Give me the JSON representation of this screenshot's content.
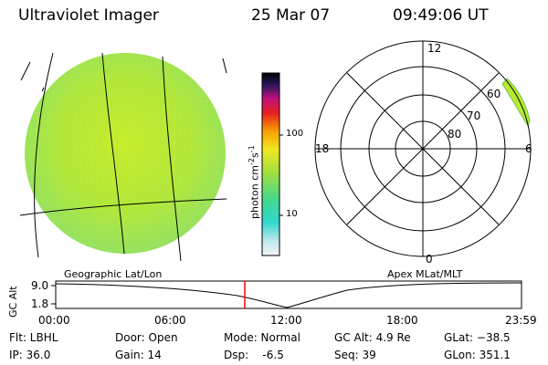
{
  "header": {
    "instrument": "Ultraviolet Imager",
    "date": "25 Mar 07",
    "time": "09:49:06 UT"
  },
  "colorbar": {
    "unit_main": "photon cm",
    "unit_exp1": "-2",
    "unit_s": "s",
    "unit_exp2": "-1",
    "tick_high": "100",
    "tick_low": "10",
    "scale": "log"
  },
  "polar_plot": {
    "mlt_labels": {
      "top": "12",
      "left": "18",
      "right": "6",
      "bottom": "0"
    },
    "lat_labels": [
      "60",
      "70",
      "80"
    ]
  },
  "timeline": {
    "axis_label": "GC Alt",
    "y_ticks": [
      "9.0",
      "1.8"
    ],
    "left_caption": "Geographic Lat/Lon",
    "right_caption": "Apex MLat/MLT",
    "x_ticks": [
      "00:00",
      "06:00",
      "12:00",
      "18:00",
      "23:59"
    ],
    "current_marker_color": "#ff0000"
  },
  "footer": {
    "flt": "Flt: LBHL",
    "ip": "IP: 36.0",
    "door": "Door: Open",
    "gain": "Gain: 14",
    "mode": "Mode: Normal",
    "dsp": "Dsp:    -6.5",
    "gc_alt": "GC Alt: 4.9 Re",
    "seq": "Seq: 39",
    "glat": "GLat: −38.5",
    "glon": "GLon: 351.1"
  },
  "colors": {
    "earth_fill": "#b4e834",
    "auroral_fill": "#b8ea30",
    "marker": "#ff0000"
  }
}
